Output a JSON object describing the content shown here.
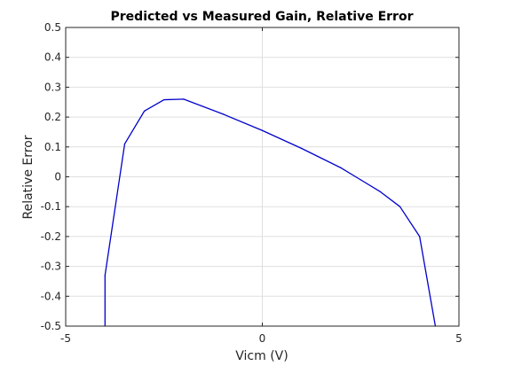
{
  "chart_data": {
    "type": "line",
    "title": "Predicted vs Measured Gain, Relative Error",
    "xlabel": "Vicm (V)",
    "ylabel": "Relative Error",
    "xlim": [
      -5,
      5
    ],
    "ylim": [
      -0.5,
      0.5
    ],
    "xticks": [
      -5,
      0,
      5
    ],
    "xtick_labels": [
      "-5",
      "0",
      "5"
    ],
    "yticks": [
      -0.5,
      -0.4,
      -0.3,
      -0.2,
      -0.1,
      0,
      0.1,
      0.2,
      0.3,
      0.4,
      0.5
    ],
    "ytick_labels": [
      "-0.5",
      "-0.4",
      "-0.3",
      "-0.2",
      "-0.1",
      "0",
      "0.1",
      "0.2",
      "0.3",
      "0.4",
      "0.5"
    ],
    "grid": true,
    "box": true,
    "series": [
      {
        "color": "#0000cc",
        "x": [
          -4.0,
          -4.0,
          -3.5,
          -3.0,
          -2.5,
          -2.0,
          -1.0,
          0.0,
          1.0,
          2.0,
          2.5,
          3.0,
          3.5,
          4.0,
          4.4
        ],
        "y": [
          -0.5,
          -0.33,
          0.11,
          0.22,
          0.258,
          0.26,
          0.21,
          0.155,
          0.095,
          0.03,
          -0.01,
          -0.05,
          -0.1,
          -0.2,
          -0.5
        ]
      }
    ]
  }
}
